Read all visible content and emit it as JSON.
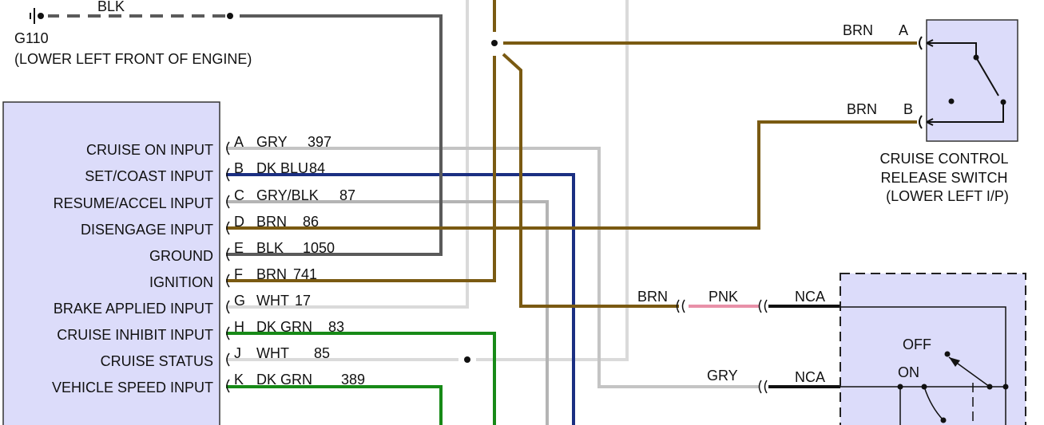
{
  "ground": {
    "label": "G110",
    "location": "(LOWER LEFT FRONT OF ENGINE)",
    "wire_color": "BLK"
  },
  "module": {
    "pins": [
      {
        "name": "CRUISE ON INPUT",
        "pin": "A",
        "color": "GRY",
        "circuit": "397"
      },
      {
        "name": "SET/COAST INPUT",
        "pin": "B",
        "color": "DK BLU",
        "circuit": "84"
      },
      {
        "name": "RESUME/ACCEL INPUT",
        "pin": "C",
        "color": "GRY/BLK",
        "circuit": "87"
      },
      {
        "name": "DISENGAGE INPUT",
        "pin": "D",
        "color": "BRN",
        "circuit": "86"
      },
      {
        "name": "GROUND",
        "pin": "E",
        "color": "BLK",
        "circuit": "1050"
      },
      {
        "name": "IGNITION",
        "pin": "F",
        "color": "BRN",
        "circuit": "741"
      },
      {
        "name": "BRAKE APPLIED INPUT",
        "pin": "G",
        "color": "WHT",
        "circuit": "17"
      },
      {
        "name": "CRUISE INHIBIT INPUT",
        "pin": "H",
        "color": "DK GRN",
        "circuit": "83"
      },
      {
        "name": "CRUISE STATUS",
        "pin": "J",
        "color": "WHT",
        "circuit": "85"
      },
      {
        "name": "VEHICLE SPEED INPUT",
        "pin": "K",
        "color": "DK GRN",
        "circuit": "389"
      }
    ]
  },
  "release_switch": {
    "line1": "CRUISE CONTROL",
    "line2": "RELEASE SWITCH",
    "line3": "(LOWER LEFT I/P)",
    "terminal_a": {
      "pin": "A",
      "color": "BRN"
    },
    "terminal_b": {
      "pin": "B",
      "color": "BRN"
    }
  },
  "cruise_switch": {
    "upper": {
      "wire_in": "BRN",
      "wire_mid": "PNK",
      "wire_out": "NCA"
    },
    "lower": {
      "wire_in": "GRY",
      "wire_out": "NCA"
    },
    "off_label": "OFF",
    "on_label": "ON"
  },
  "colors": {
    "module_fill": "#dcdcfa",
    "brn": "#7a5a12",
    "gry": "#c4c4c4",
    "dk_blu": "#1b2f82",
    "blk": "#5a5a5a",
    "wht": "#dadada",
    "dk_grn": "#178a17",
    "pnk": "#e890a8"
  }
}
